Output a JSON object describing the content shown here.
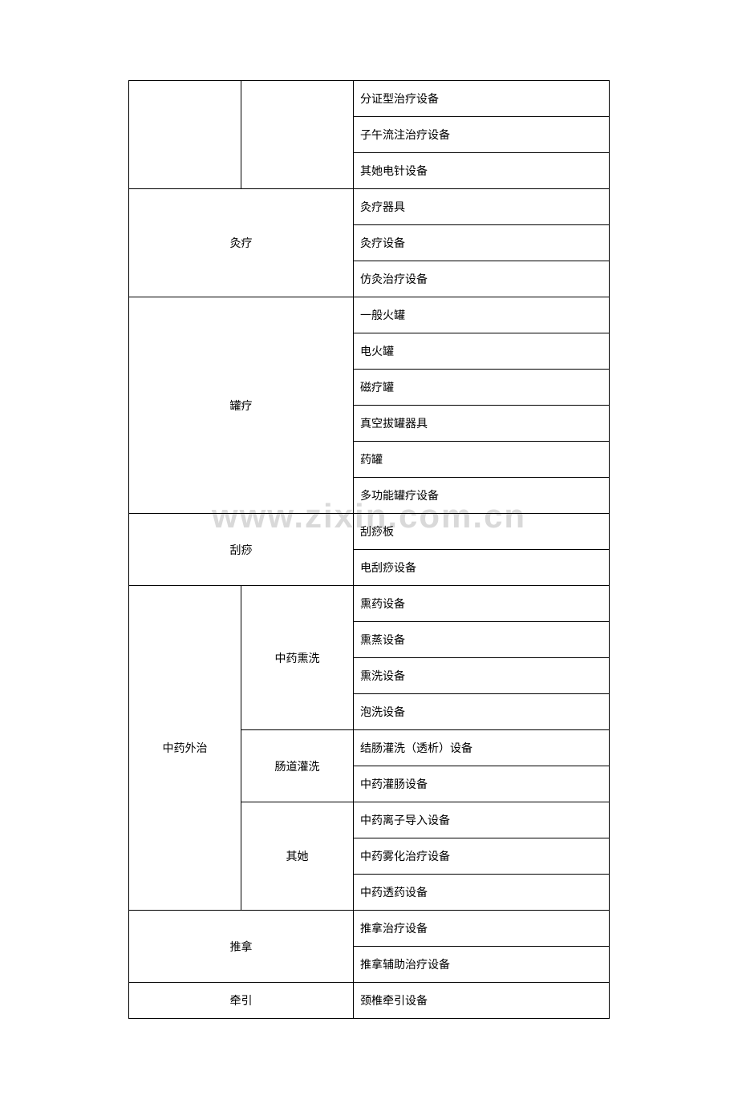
{
  "watermark": "www.zixin.com.cn",
  "rows": [
    {
      "cat": "",
      "catRowspan": 3,
      "catColspan": 1,
      "sub": "",
      "subRowspan": 3,
      "item": "分证型治疗设备"
    },
    {
      "item": "子午流注治疗设备"
    },
    {
      "item": "其她电针设备"
    },
    {
      "merged": "灸疗",
      "mergedRowspan": 3,
      "item": "灸疗器具"
    },
    {
      "item": "灸疗设备"
    },
    {
      "item": "仿灸治疗设备"
    },
    {
      "merged": "罐疗",
      "mergedRowspan": 6,
      "item": "一般火罐"
    },
    {
      "item": "电火罐"
    },
    {
      "item": "磁疗罐"
    },
    {
      "item": "真空拔罐器具"
    },
    {
      "item": "药罐"
    },
    {
      "item": "多功能罐疗设备"
    },
    {
      "merged": "刮痧",
      "mergedRowspan": 2,
      "item": "刮痧板"
    },
    {
      "item": "电刮痧设备"
    },
    {
      "cat": "中药外治",
      "catRowspan": 9,
      "sub": "中药熏洗",
      "subRowspan": 4,
      "item": "熏药设备"
    },
    {
      "item": "熏蒸设备"
    },
    {
      "item": "熏洗设备"
    },
    {
      "item": "泡洗设备"
    },
    {
      "sub": "肠道灌洗",
      "subRowspan": 2,
      "item": "结肠灌洗（透析）设备"
    },
    {
      "item": "中药灌肠设备"
    },
    {
      "sub": "其她",
      "subRowspan": 3,
      "item": "中药离子导入设备"
    },
    {
      "item": "中药雾化治疗设备"
    },
    {
      "item": "中药透药设备"
    },
    {
      "merged": "推拿",
      "mergedRowspan": 2,
      "item": "推拿治疗设备"
    },
    {
      "item": "推拿辅助治疗设备"
    },
    {
      "merged": "牵引",
      "mergedRowspan": 1,
      "item": "颈椎牵引设备"
    }
  ],
  "styling": {
    "border_color": "#000000",
    "background_color": "#ffffff",
    "text_color": "#000000",
    "watermark_color": "#d9d9d9",
    "font_size": 14,
    "cell_padding": 12
  }
}
